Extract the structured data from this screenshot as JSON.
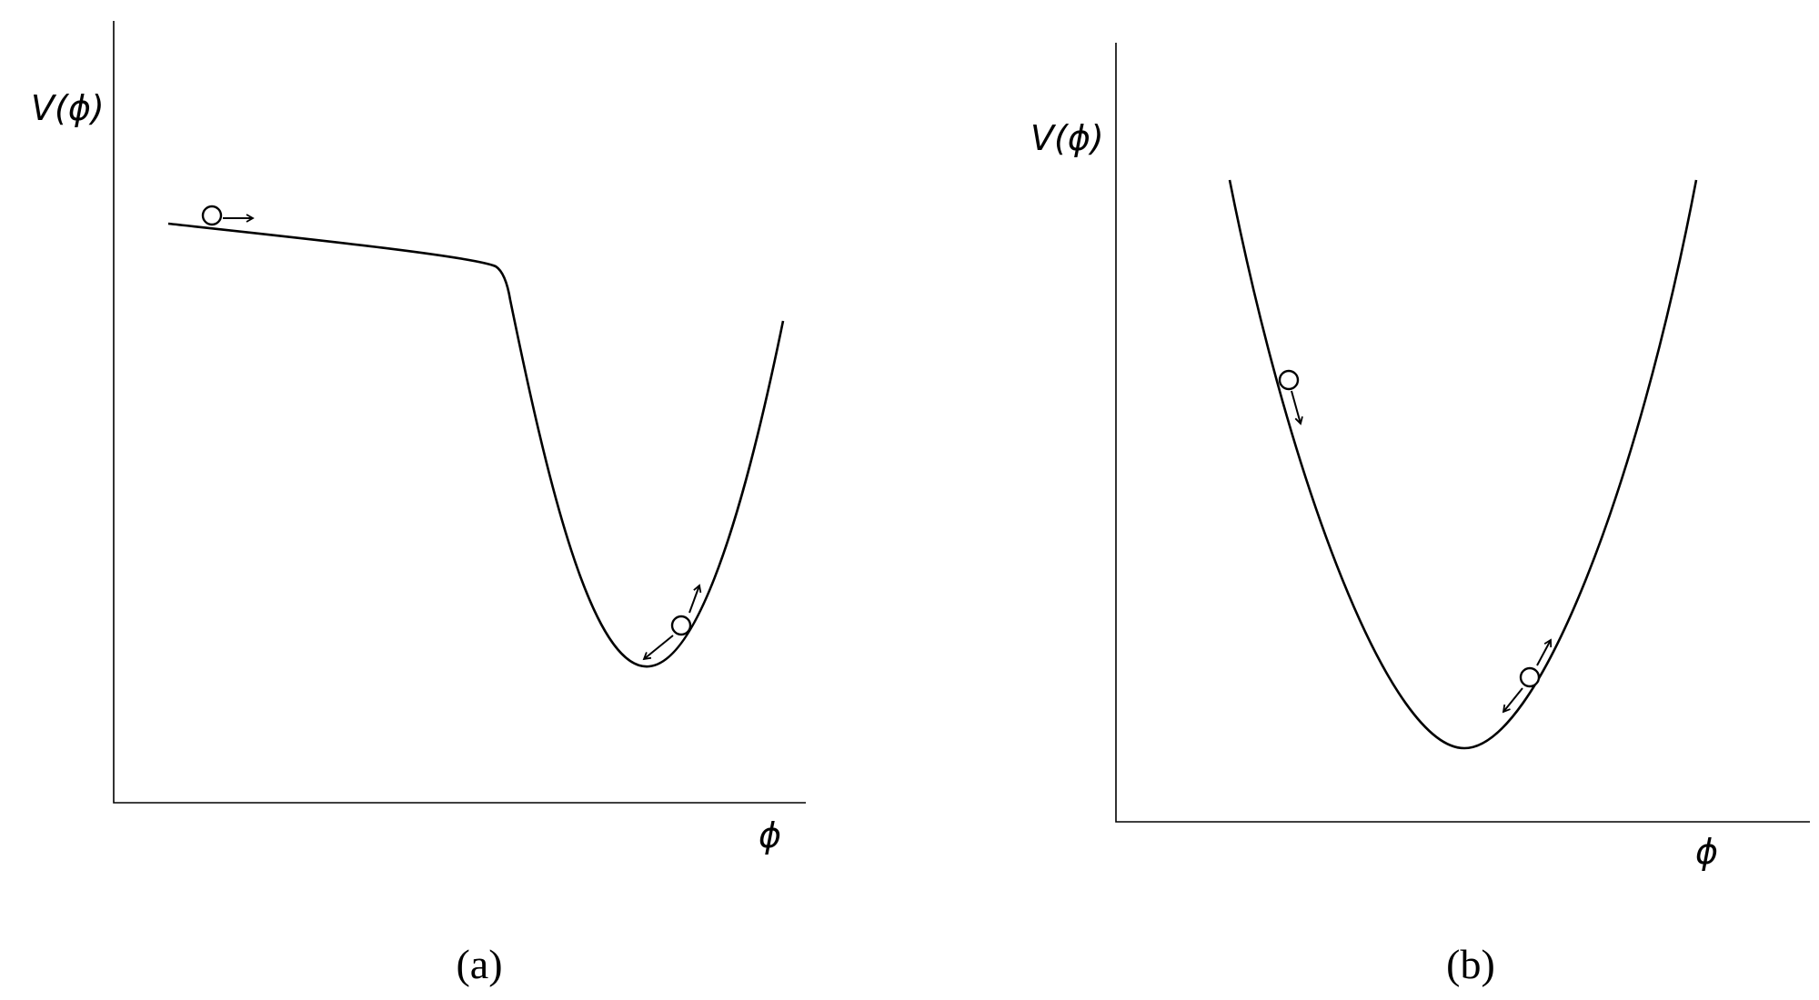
{
  "panels": [
    {
      "y_label": "V(ϕ)",
      "x_label": "ϕ",
      "caption": "(a)"
    },
    {
      "y_label": "V(ϕ)",
      "x_label": "ϕ",
      "caption": "(b)"
    }
  ]
}
